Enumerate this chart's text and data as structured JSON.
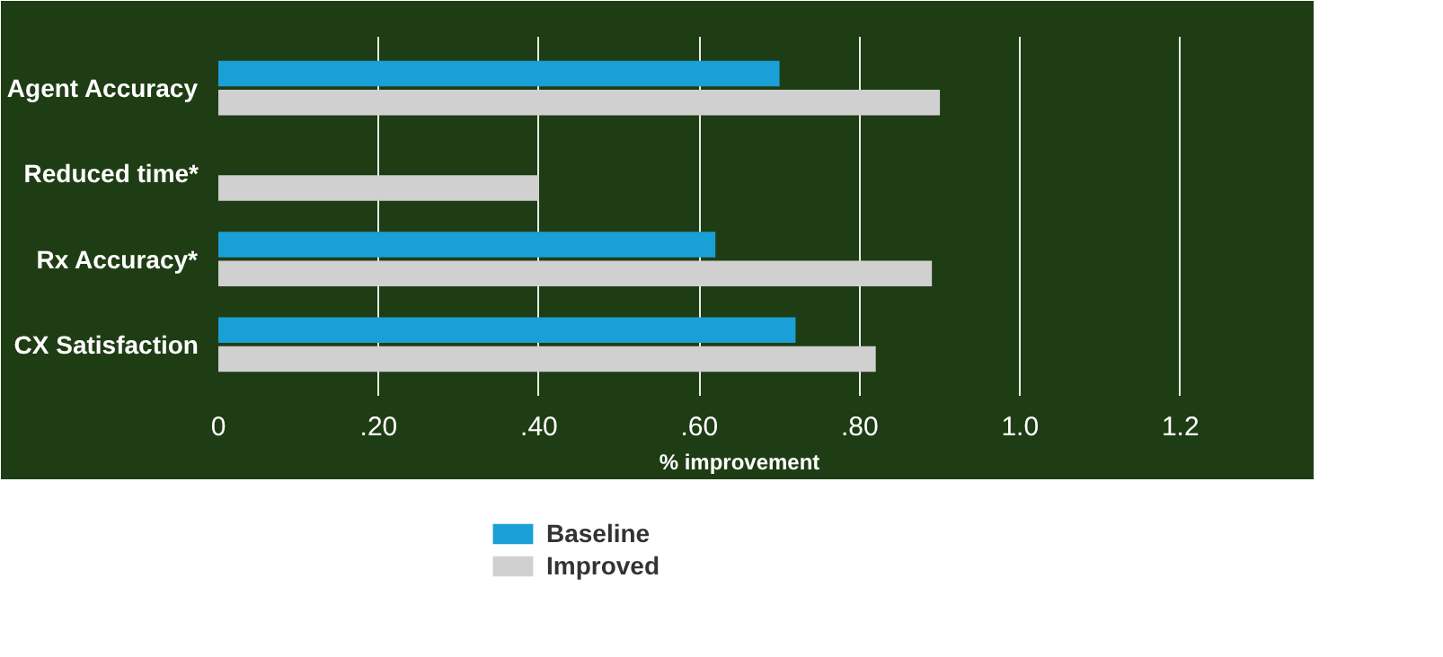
{
  "chart_data": {
    "type": "bar",
    "orientation": "horizontal",
    "categories": [
      "Agent Accuracy",
      "Reduced time*",
      "Rx Accuracy*",
      "CX Satisfaction"
    ],
    "series": [
      {
        "name": "Baseline",
        "color": "#1a9fd6",
        "values": [
          0.7,
          null,
          0.62,
          0.72
        ]
      },
      {
        "name": "Improved",
        "color": "#d0d0d0",
        "values": [
          0.9,
          0.4,
          0.89,
          0.82
        ]
      }
    ],
    "xlabel": "% improvement",
    "xlim": [
      0,
      1.3
    ],
    "xticks": [
      0,
      {
        "value": 0.2,
        "label": ".20"
      },
      {
        "value": 0.4,
        "label": ".40"
      },
      {
        "value": 0.6,
        "label": ".60"
      },
      {
        "value": 0.8,
        "label": ".80"
      },
      {
        "value": 1.0,
        "label": "1.0"
      },
      {
        "value": 1.2,
        "label": "1.2"
      }
    ],
    "grid": "x",
    "legend": "bottom"
  }
}
